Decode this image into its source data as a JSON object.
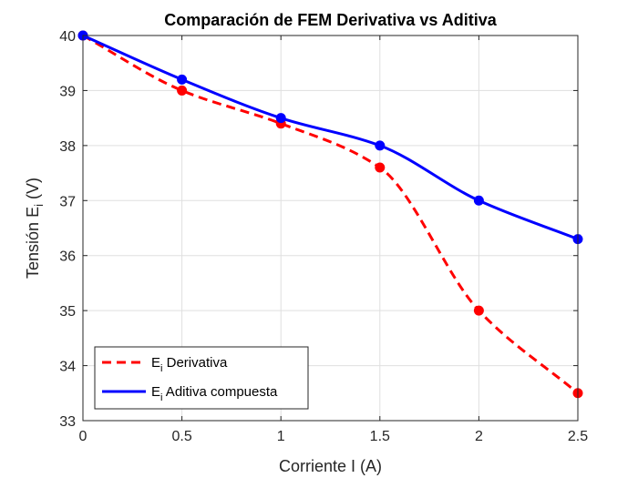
{
  "chart_data": {
    "type": "line",
    "title": "Comparación de FEM Derivativa vs Aditiva",
    "xlabel": "Corriente I (A)",
    "ylabel": {
      "base": "Tensión E",
      "sub": "i",
      "tail": " (V)"
    },
    "xlim": [
      0,
      2.5
    ],
    "ylim": [
      33,
      40
    ],
    "xticks": [
      "0",
      "0.5",
      "1",
      "1.5",
      "2",
      "2.5"
    ],
    "yticks": [
      "33",
      "34",
      "35",
      "36",
      "37",
      "38",
      "39",
      "40"
    ],
    "grid": true,
    "legend_position": "bottom-left",
    "x": [
      0,
      0.5,
      1,
      1.5,
      2,
      2.5
    ],
    "series": [
      {
        "name": {
          "base": "E",
          "sub": "i",
          "tail": " Derivativa"
        },
        "values": [
          40,
          39.0,
          38.4,
          37.6,
          35.0,
          33.5
        ],
        "color": "#ff0000",
        "style": "dashed"
      },
      {
        "name": {
          "base": "E",
          "sub": "i",
          "tail": " Aditiva compuesta"
        },
        "values": [
          40,
          39.2,
          38.5,
          38.0,
          37.0,
          36.3
        ],
        "color": "#0000ff",
        "style": "solid"
      }
    ]
  }
}
